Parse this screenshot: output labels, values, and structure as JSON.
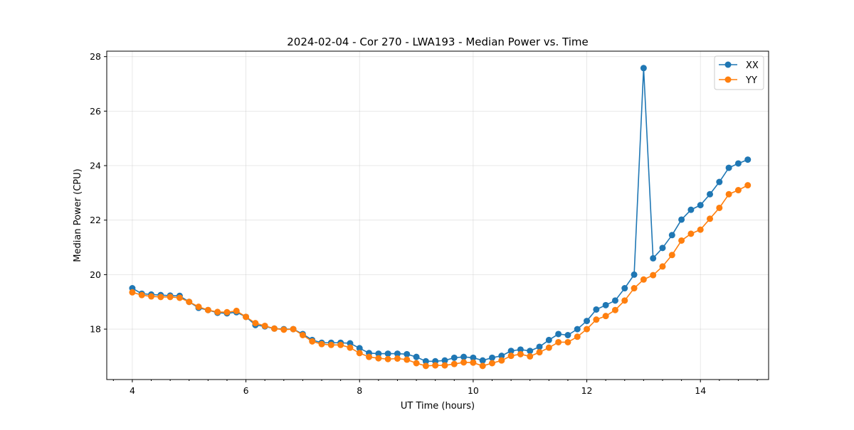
{
  "chart_data": {
    "type": "line",
    "title": "2024-02-04 - Cor 270 - LWA193 - Median Power vs. Time",
    "xlabel": "UT Time (hours)",
    "ylabel": "Median Power (CPU)",
    "xlim": [
      3.55,
      15.2
    ],
    "ylim": [
      16.15,
      28.2
    ],
    "xticks": [
      4,
      6,
      8,
      10,
      12,
      14
    ],
    "xtick_labels": [
      "4",
      "6",
      "8",
      "10",
      "12",
      "14"
    ],
    "xminor_ticks": [
      3.6667,
      4.3333,
      4.6667,
      5.0,
      5.3333,
      5.6667,
      6.3333,
      6.6667,
      7.0,
      7.3333,
      7.6667,
      8.3333,
      8.6667,
      9.0,
      9.3333,
      9.6667,
      10.3333,
      10.6667,
      11.0,
      11.3333,
      11.6667,
      12.3333,
      12.6667,
      13.0,
      13.3333,
      13.6667,
      14.3333,
      14.6667,
      15.0
    ],
    "yticks": [
      18,
      20,
      22,
      24,
      26,
      28
    ],
    "ytick_labels": [
      "18",
      "20",
      "22",
      "24",
      "26",
      "28"
    ],
    "grid": true,
    "legend_position": "top-right",
    "x": [
      4.0,
      4.1667,
      4.3333,
      4.5,
      4.6667,
      4.8333,
      5.0,
      5.1667,
      5.3333,
      5.5,
      5.6667,
      5.8333,
      6.0,
      6.1667,
      6.3333,
      6.5,
      6.6667,
      6.8333,
      7.0,
      7.1667,
      7.3333,
      7.5,
      7.6667,
      7.8333,
      8.0,
      8.1667,
      8.3333,
      8.5,
      8.6667,
      8.8333,
      9.0,
      9.1667,
      9.3333,
      9.5,
      9.6667,
      9.8333,
      10.0,
      10.1667,
      10.3333,
      10.5,
      10.6667,
      10.8333,
      11.0,
      11.1667,
      11.3333,
      11.5,
      11.6667,
      11.8333,
      12.0,
      12.1667,
      12.3333,
      12.5,
      12.6667,
      12.8333,
      13.0,
      13.1667,
      13.3333,
      13.5,
      13.6667,
      13.8333,
      14.0,
      14.1667,
      14.3333,
      14.5,
      14.6667,
      14.8333
    ],
    "series": [
      {
        "name": "XX",
        "color": "#1f77b4",
        "values": [
          19.5,
          19.3,
          19.27,
          19.25,
          19.23,
          19.22,
          19.0,
          18.78,
          18.7,
          18.6,
          18.58,
          18.62,
          18.45,
          18.15,
          18.1,
          18.02,
          18.0,
          18.0,
          17.82,
          17.6,
          17.5,
          17.5,
          17.5,
          17.48,
          17.3,
          17.12,
          17.1,
          17.1,
          17.1,
          17.08,
          16.98,
          16.82,
          16.82,
          16.85,
          16.95,
          16.98,
          16.95,
          16.85,
          16.95,
          17.02,
          17.2,
          17.25,
          17.2,
          17.35,
          17.6,
          17.82,
          17.78,
          18.0,
          18.3,
          18.72,
          18.88,
          19.05,
          19.5,
          20.0,
          27.58,
          20.6,
          20.98,
          21.45,
          22.02,
          22.38,
          22.55,
          22.95,
          23.4,
          23.92,
          24.08,
          24.22
        ]
      },
      {
        "name": "YY",
        "color": "#ff7f0e",
        "values": [
          19.35,
          19.25,
          19.2,
          19.18,
          19.18,
          19.15,
          19.0,
          18.82,
          18.7,
          18.63,
          18.62,
          18.67,
          18.45,
          18.22,
          18.12,
          18.02,
          17.98,
          18.0,
          17.78,
          17.55,
          17.45,
          17.42,
          17.42,
          17.32,
          17.12,
          16.98,
          16.93,
          16.9,
          16.92,
          16.88,
          16.75,
          16.65,
          16.67,
          16.67,
          16.72,
          16.78,
          16.77,
          16.65,
          16.75,
          16.85,
          17.02,
          17.08,
          17.0,
          17.15,
          17.32,
          17.52,
          17.52,
          17.72,
          18.0,
          18.35,
          18.48,
          18.7,
          19.05,
          19.5,
          19.82,
          19.98,
          20.3,
          20.72,
          21.25,
          21.5,
          21.65,
          22.05,
          22.45,
          22.95,
          23.1,
          23.28
        ]
      }
    ]
  }
}
